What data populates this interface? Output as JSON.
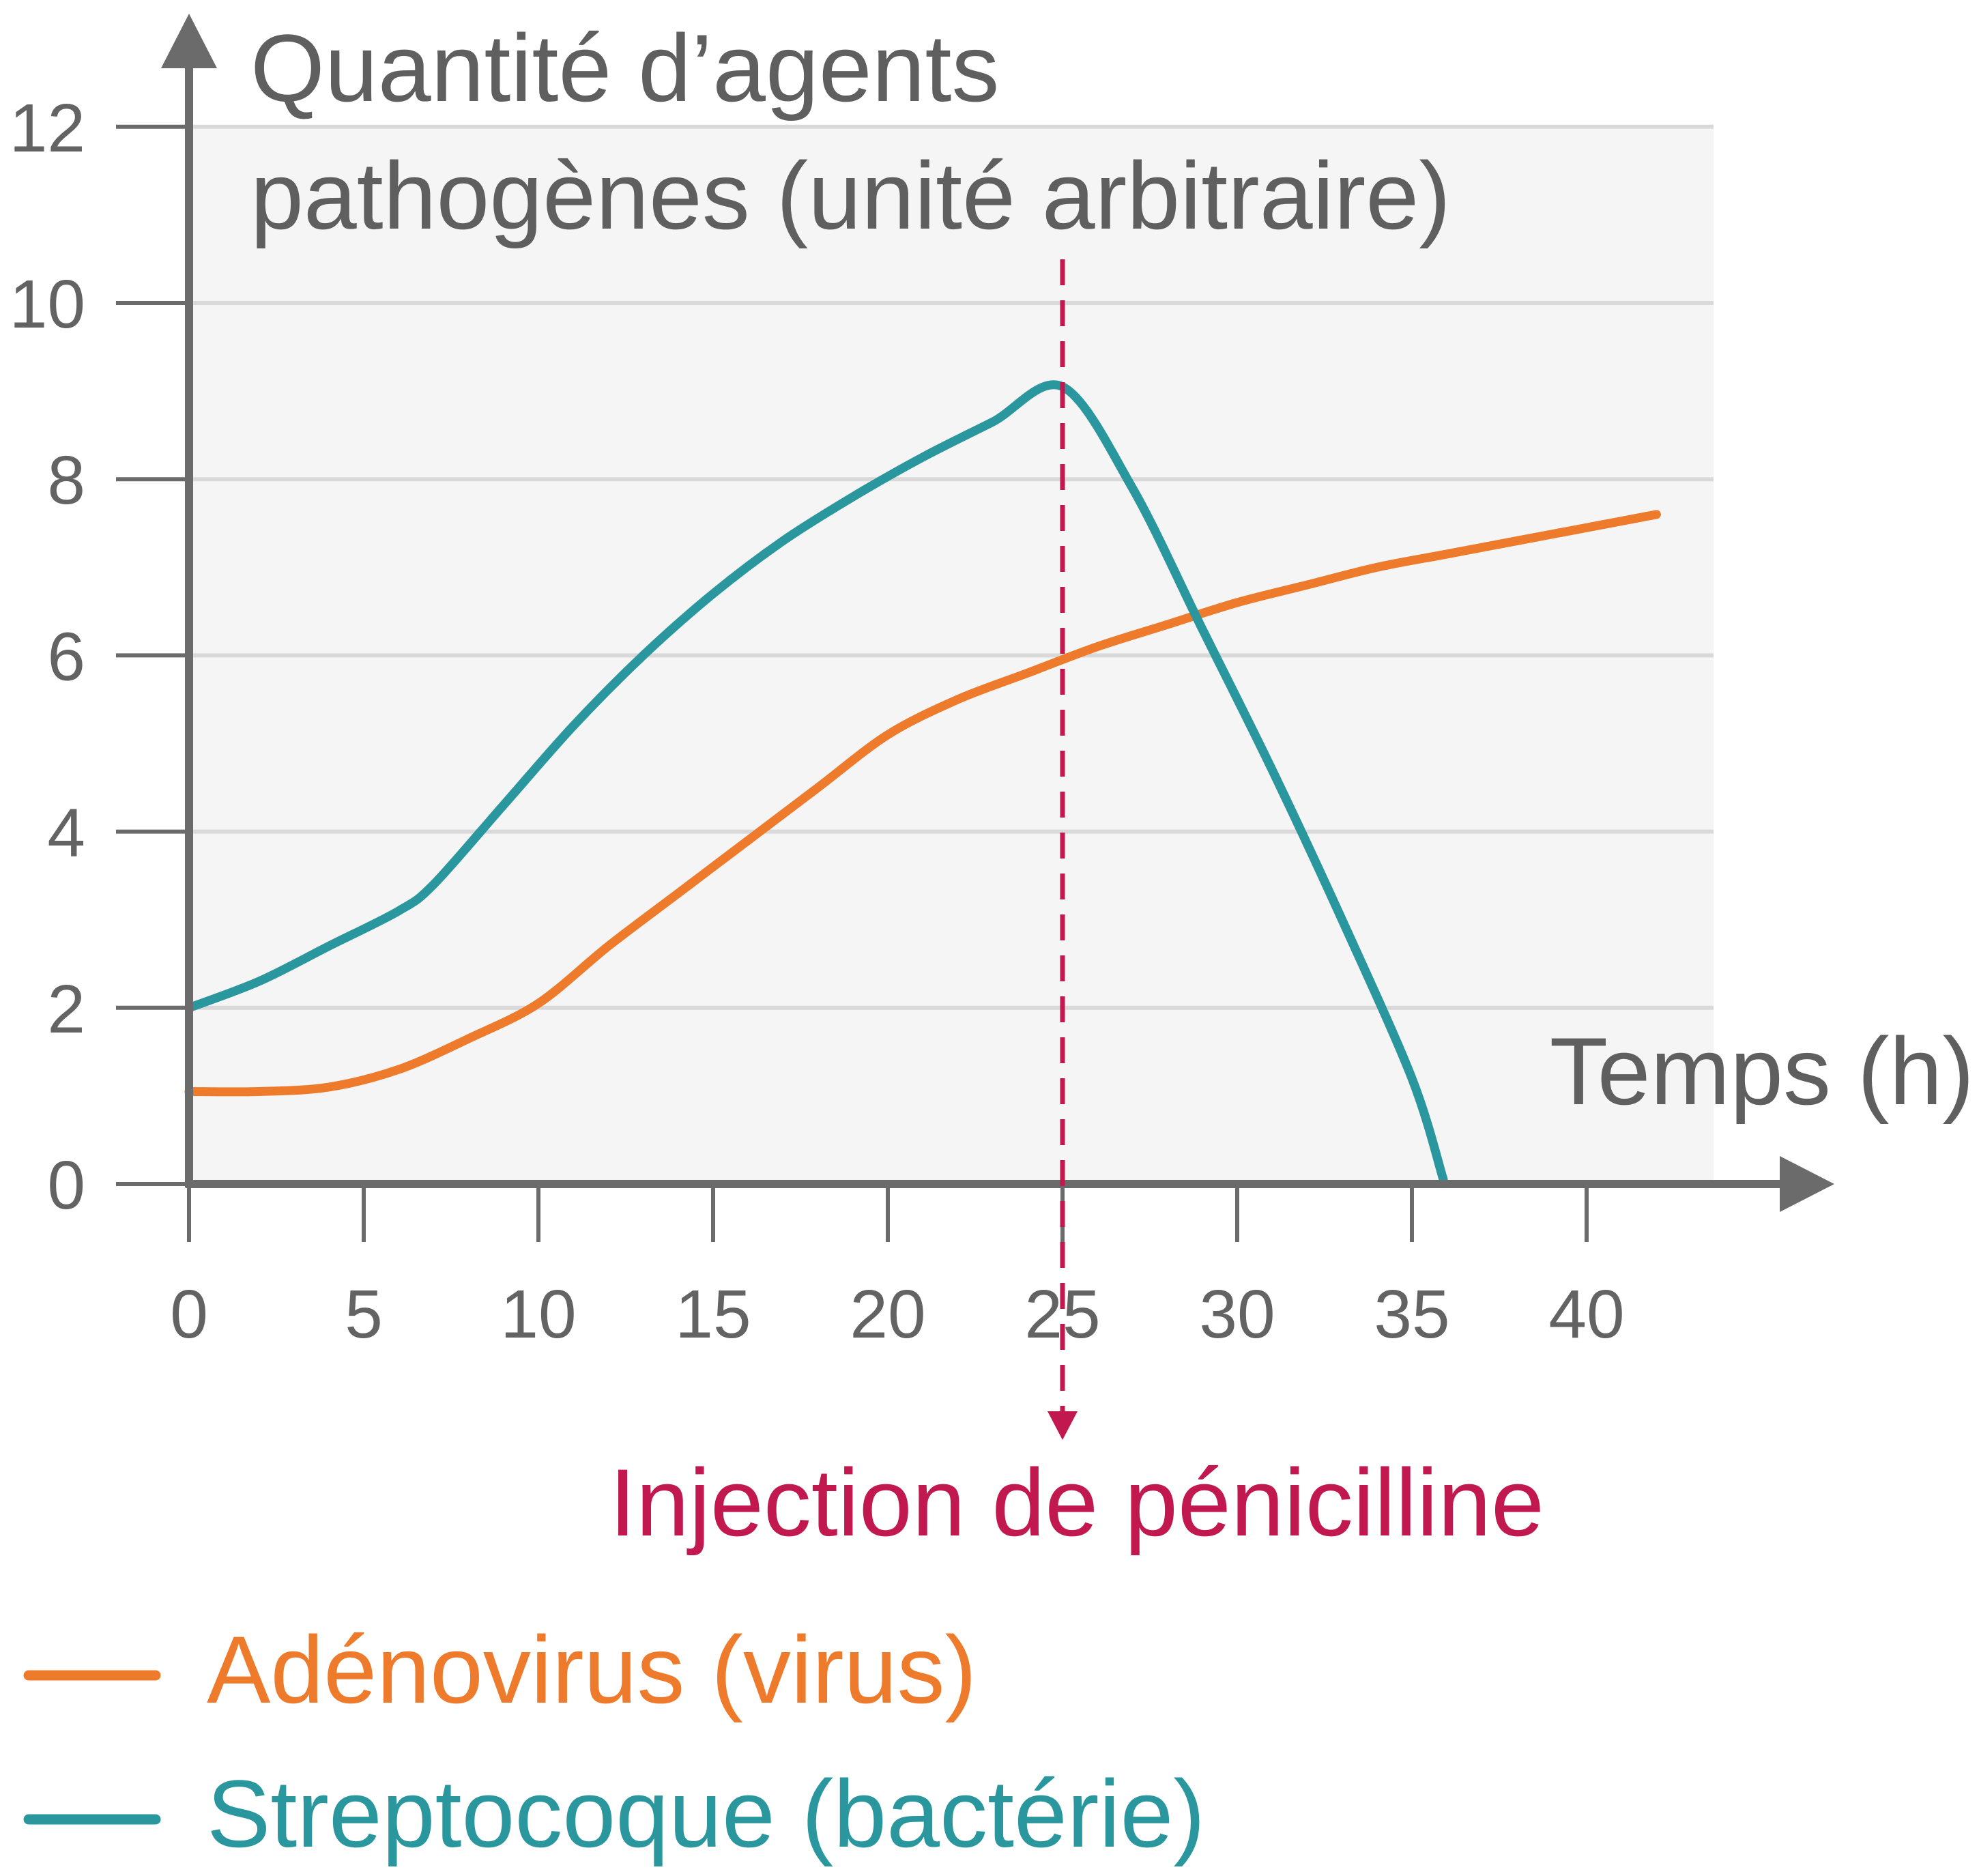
{
  "chart_data": {
    "type": "line",
    "ylabel_line1": "Quantité d’agents",
    "ylabel_line2": "pathogènes (unité arbitraire)",
    "xlabel": "Temps (h)",
    "xlim": [
      0,
      42
    ],
    "ylim": [
      0,
      12
    ],
    "x_ticks": [
      0,
      5,
      10,
      15,
      20,
      25,
      30,
      35,
      40
    ],
    "y_ticks": [
      0,
      2,
      4,
      6,
      8,
      10,
      12
    ],
    "grid": true,
    "legend_position": "bottom-left",
    "annotation": {
      "text": "Injection de pénicilline",
      "x": 25,
      "color": "#c0184f"
    },
    "series": [
      {
        "name": "Adénovirus (virus)",
        "color": "#ee7b2c",
        "points": [
          [
            0,
            1.05
          ],
          [
            2,
            1.05
          ],
          [
            4,
            1.1
          ],
          [
            6,
            1.3
          ],
          [
            8,
            1.65
          ],
          [
            10,
            2.05
          ],
          [
            12,
            2.7
          ],
          [
            14,
            3.3
          ],
          [
            16,
            3.9
          ],
          [
            18,
            4.5
          ],
          [
            20,
            5.1
          ],
          [
            22,
            5.5
          ],
          [
            24,
            5.8
          ],
          [
            26,
            6.1
          ],
          [
            28,
            6.35
          ],
          [
            30,
            6.6
          ],
          [
            32,
            6.8
          ],
          [
            34,
            7.0
          ],
          [
            36,
            7.15
          ],
          [
            38,
            7.3
          ],
          [
            40,
            7.45
          ],
          [
            42,
            7.6
          ]
        ]
      },
      {
        "name": "Streptocoque (bactérie)",
        "color": "#2a979e",
        "points": [
          [
            0,
            2.0
          ],
          [
            2,
            2.3
          ],
          [
            4,
            2.7
          ],
          [
            6,
            3.1
          ],
          [
            7,
            3.4
          ],
          [
            9,
            4.3
          ],
          [
            11,
            5.2
          ],
          [
            13,
            6.0
          ],
          [
            15,
            6.7
          ],
          [
            17,
            7.3
          ],
          [
            19,
            7.8
          ],
          [
            21,
            8.25
          ],
          [
            23,
            8.65
          ],
          [
            25,
            9.05
          ],
          [
            27,
            7.9
          ],
          [
            29,
            6.3
          ],
          [
            31,
            4.7
          ],
          [
            33,
            3.0
          ],
          [
            35,
            1.2
          ],
          [
            35.9,
            0.05
          ]
        ]
      }
    ]
  },
  "colors": {
    "axis": "#6b6b6b",
    "grid": "#d9d9d9",
    "plot_bg": "#f5f5f5"
  }
}
